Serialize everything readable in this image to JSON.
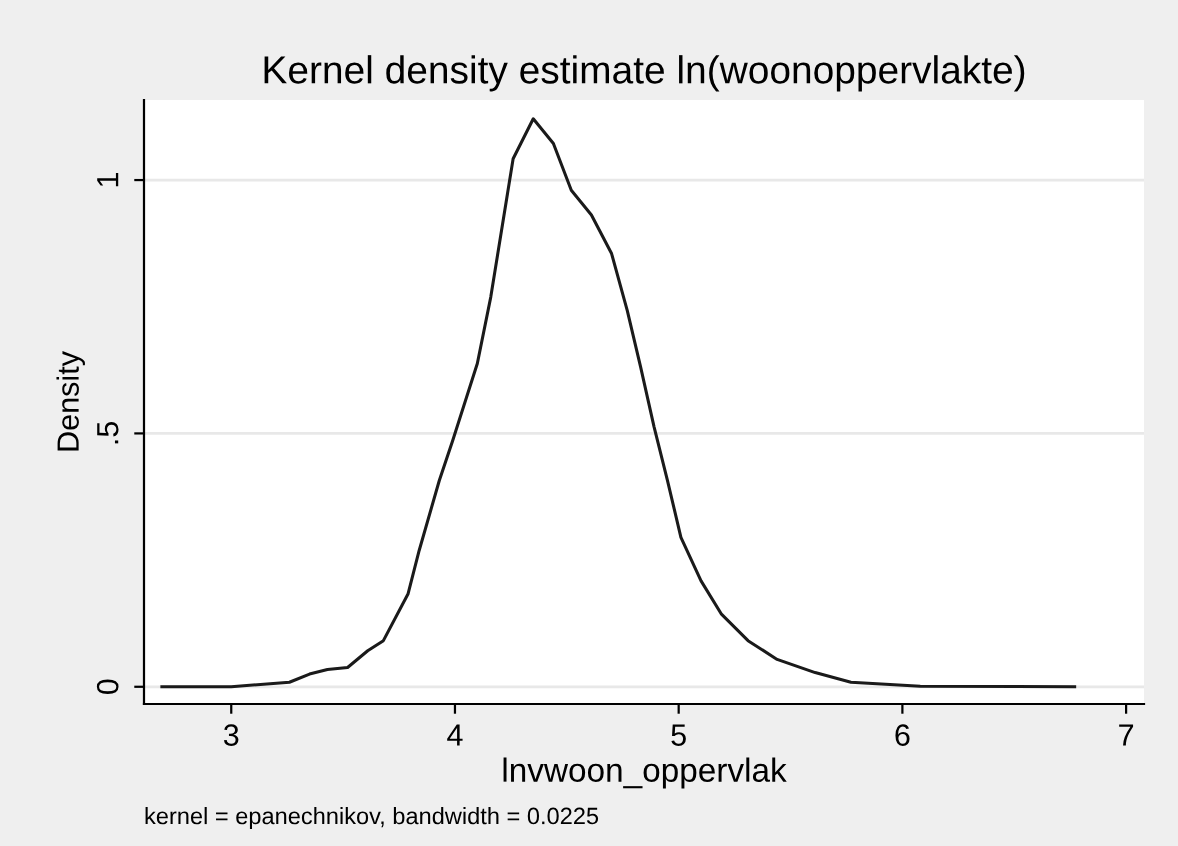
{
  "chart_data": {
    "type": "line",
    "title": "Kernel density estimate ln(woonoppervlakte)",
    "xlabel": "lnvwoon_oppervlak",
    "ylabel": "Density",
    "annotations": [
      "kernel = epanechnikov, bandwidth = 0.0225"
    ],
    "x": [
      2.69,
      3.0,
      3.26,
      3.35,
      3.43,
      3.52,
      3.61,
      3.68,
      3.79,
      3.84,
      3.93,
      3.99,
      4.1,
      4.16,
      4.26,
      4.35,
      4.44,
      4.52,
      4.61,
      4.7,
      4.77,
      4.83,
      4.89,
      4.95,
      5.01,
      5.1,
      5.19,
      5.31,
      5.44,
      5.61,
      5.77,
      6.08,
      6.77
    ],
    "series": [
      {
        "color": "#1a1a1a",
        "values": [
          0,
          0,
          0.009,
          0.025,
          0.034,
          0.038,
          0.071,
          0.091,
          0.183,
          0.269,
          0.407,
          0.486,
          0.638,
          0.769,
          1.042,
          1.121,
          1.072,
          0.98,
          0.931,
          0.855,
          0.743,
          0.631,
          0.513,
          0.407,
          0.295,
          0.209,
          0.144,
          0.091,
          0.054,
          0.028,
          0.009,
          0.001,
          0
        ]
      }
    ],
    "xlim": [
      2.61,
      7.08
    ],
    "ylim": [
      -0.034,
      1.158
    ],
    "xticks": [
      3,
      4,
      5,
      6,
      7
    ],
    "yticks": [
      {
        "value": 0,
        "label": "0"
      },
      {
        "value": 0.5,
        "label": ".5"
      },
      {
        "value": 1,
        "label": "1"
      }
    ],
    "grid": "y",
    "line_style": "solid",
    "marker": "none"
  }
}
